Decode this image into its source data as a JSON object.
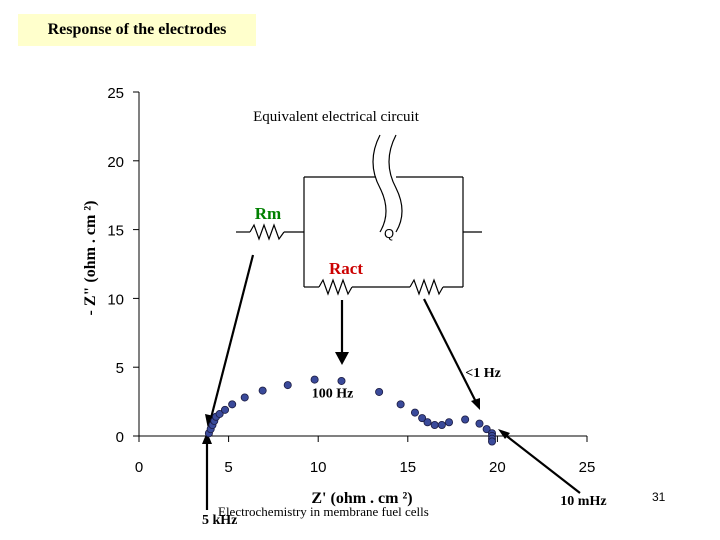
{
  "slide": {
    "title": "Response of the electrodes",
    "footer": "Electrochemistry in membrane fuel cells",
    "slide_number": "31"
  },
  "chart_data": {
    "type": "scatter",
    "title": "",
    "xlabel": "Z' (ohm . cm ²)",
    "ylabel": "- Z\" (ohm . cm ²)",
    "xlim": [
      0,
      25
    ],
    "ylim": [
      0,
      25
    ],
    "xticks": [
      0,
      5,
      10,
      15,
      20,
      25
    ],
    "yticks": [
      0,
      5,
      10,
      15,
      20,
      25
    ],
    "grid": false,
    "marker_color": "#3a4a9a",
    "series": [
      {
        "x": [
          3.9,
          4.0,
          4.1,
          4.2,
          4.3,
          4.5,
          4.8,
          5.2,
          5.9,
          6.9,
          8.3,
          9.8,
          11.3,
          13.4,
          14.6,
          15.4,
          15.8,
          16.1,
          16.5,
          16.9,
          17.3,
          18.2,
          19.0,
          19.4,
          19.7,
          19.7,
          19.7,
          19.7
        ],
        "y": [
          0.2,
          0.5,
          0.8,
          1.1,
          1.4,
          1.6,
          1.9,
          2.3,
          2.8,
          3.3,
          3.7,
          4.1,
          4.0,
          3.2,
          2.3,
          1.7,
          1.3,
          1.0,
          0.8,
          0.8,
          1.0,
          1.2,
          0.9,
          0.5,
          0.2,
          0.0,
          -0.2,
          -0.4
        ]
      }
    ],
    "annotations": [
      {
        "text": "100 Hz",
        "x": 10.8,
        "y": 2.8
      },
      {
        "text": "<1 Hz",
        "x": 19.2,
        "y": 4.3
      },
      {
        "text": "5 kHz",
        "x": 4.5,
        "y": -6.4
      },
      {
        "text": "10 mHz",
        "x": 24.8,
        "y": -5.0
      }
    ]
  },
  "inset": {
    "title": "Equivalent electrical circuit",
    "label_rm": "Rm",
    "label_ract": "Ract",
    "label_q": "Q",
    "rm_color": "#008000",
    "ract_color": "#cc0000"
  }
}
